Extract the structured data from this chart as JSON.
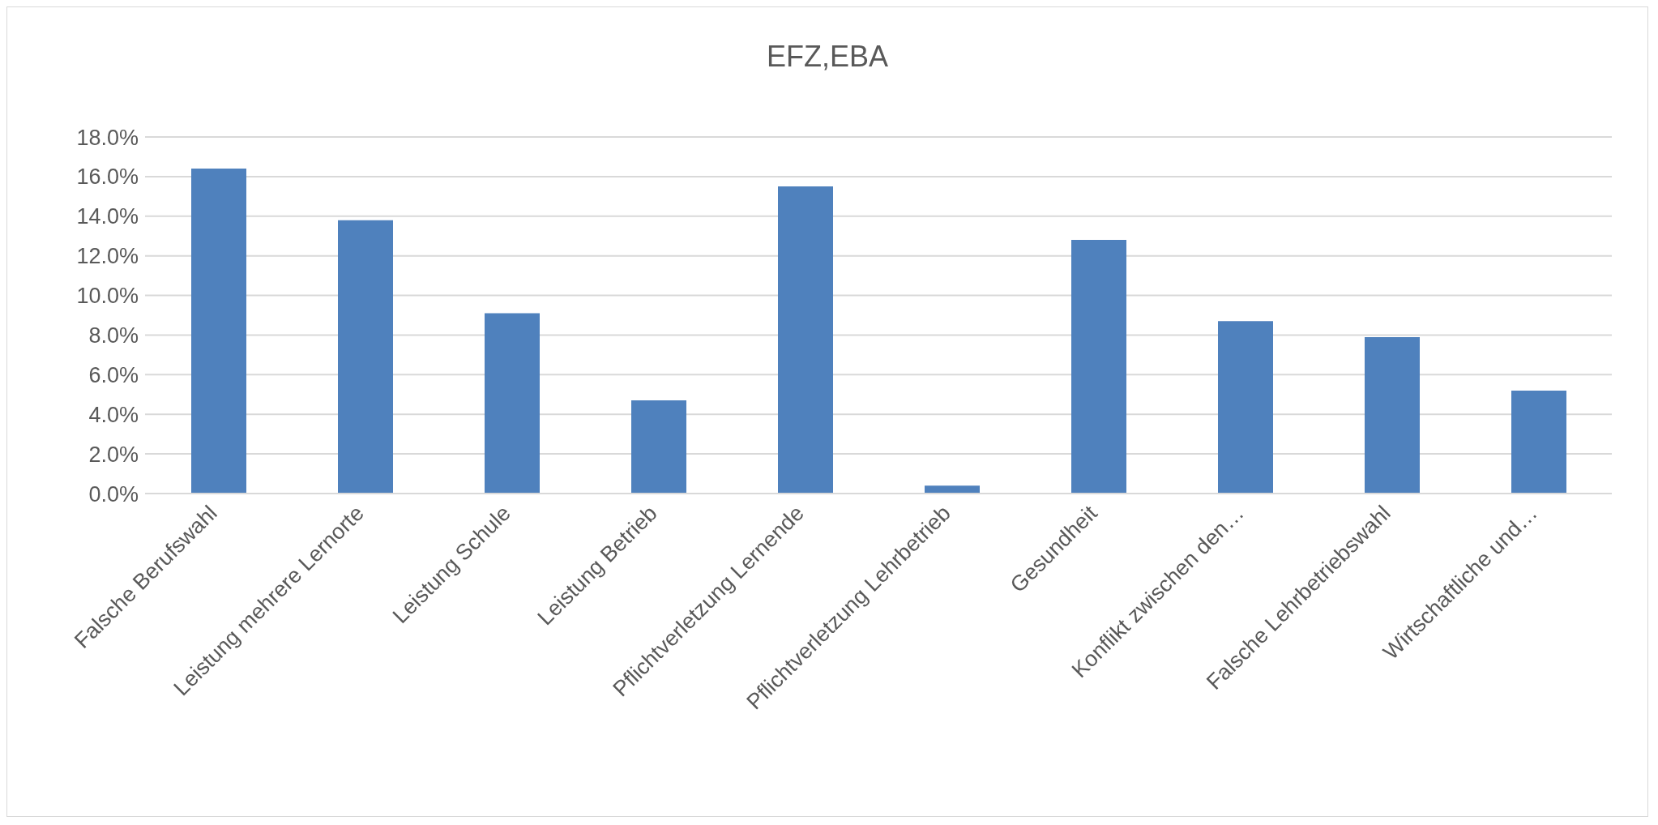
{
  "chart_data": {
    "type": "bar",
    "title": "EFZ,EBA",
    "categories": [
      "Falsche Berufswahl",
      "Leistung mehrere Lernorte",
      "Leistung Schule",
      "Leistung Betrieb",
      "Pflichtverletzung Lernende",
      "Pflichtverletzung Lehrbetrieb",
      "Gesundheit",
      "Konflikt zwischen den…",
      "Falsche Lehrbetriebswahl",
      "Wirtschaftliche und…"
    ],
    "values": [
      16.4,
      13.8,
      9.1,
      4.7,
      15.5,
      0.4,
      12.8,
      8.7,
      7.9,
      5.2
    ],
    "color": "#4f81bd",
    "ylim": [
      0,
      18
    ],
    "yticks": [
      {
        "value": 0,
        "label": "0.0%"
      },
      {
        "value": 2,
        "label": "2.0%"
      },
      {
        "value": 4,
        "label": "4.0%"
      },
      {
        "value": 6,
        "label": "6.0%"
      },
      {
        "value": 8,
        "label": "8.0%"
      },
      {
        "value": 10,
        "label": "10.0%"
      },
      {
        "value": 12,
        "label": "12.0%"
      },
      {
        "value": 14,
        "label": "14.0%"
      },
      {
        "value": 16,
        "label": "16.0%"
      },
      {
        "value": 18,
        "label": "18.0%"
      }
    ],
    "grid": "y",
    "legend": false
  }
}
